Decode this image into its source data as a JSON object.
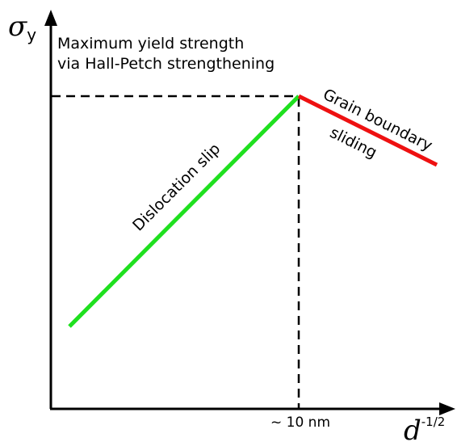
{
  "diagram": {
    "y_axis_symbol": "σ",
    "y_axis_subscript": "y",
    "x_axis_symbol": "d",
    "x_axis_superscript": "-1/2",
    "peak_annotation_line1": "Maximum yield strength",
    "peak_annotation_line2": "via Hall-Petch strengthening",
    "dislocation_label": "Dislocation slip",
    "grain_boundary_label_line1": "Grain boundary",
    "grain_boundary_label_line2": "sliding",
    "x_tick_label": "~ 10 nm",
    "colors": {
      "dislocation_line": "#1fe01f",
      "grain_boundary_line": "#ee1111",
      "axes": "#000000"
    }
  }
}
